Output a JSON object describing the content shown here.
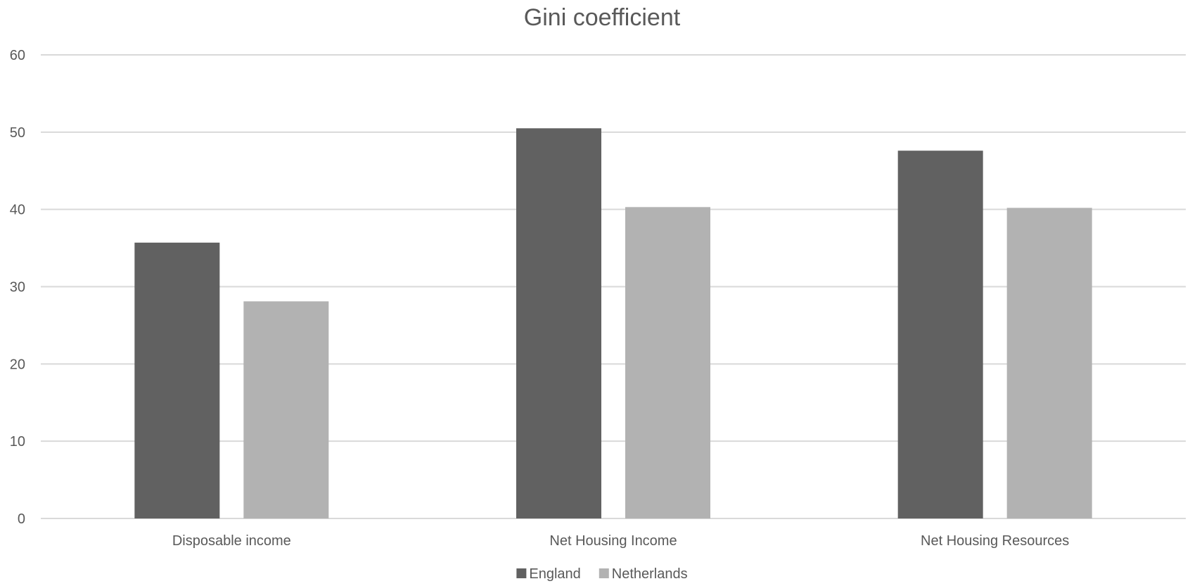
{
  "chart_data": {
    "type": "bar",
    "title": "Gini coefficient",
    "xlabel": "",
    "ylabel": "",
    "categories": [
      "Disposable income",
      "Net Housing Income",
      "Net Housing Resources"
    ],
    "series": [
      {
        "name": "England",
        "color": "#616161",
        "values": [
          35.7,
          50.5,
          47.6
        ]
      },
      {
        "name": "Netherlands",
        "color": "#b2b2b2",
        "values": [
          28.1,
          40.3,
          40.2
        ]
      }
    ],
    "ylim": [
      0,
      60
    ],
    "yticks": [
      0,
      10,
      20,
      30,
      40,
      50,
      60
    ],
    "grid": true,
    "legend_position": "bottom"
  }
}
